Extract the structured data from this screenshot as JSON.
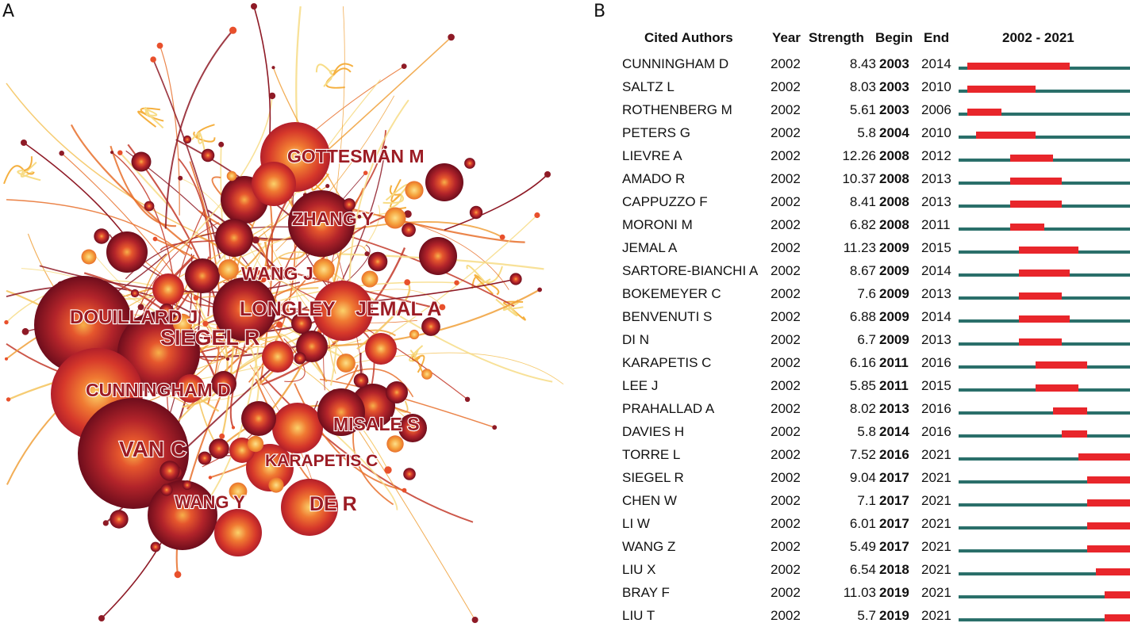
{
  "panel_a": {
    "letter": "A",
    "labels": {
      "gottesman": "GOTTESMAN M",
      "zhang": "ZHANG Y",
      "wangj": "WANG J",
      "longley": "LONGLEY",
      "jemal": "JEMAL A",
      "douillard": "DOUILLARD J",
      "siegel": "SIEGEL R",
      "cunningham": "CUNNINGHAM D",
      "misale": "MISALE S",
      "vanc": "VAN C",
      "karapetis": "KARAPETIS C",
      "wangy": "WANG Y",
      "der": "DE R"
    },
    "colors": {
      "label": "#9c1c24",
      "node_dark": "#7a0f1f",
      "node_mid": "#d1402a",
      "node_light": "#f59a3a",
      "link_pale": "#f7dc86"
    }
  },
  "panel_b": {
    "letter": "B",
    "headers": {
      "author": "Cited Authors",
      "year": "Year",
      "strength": "Strength",
      "begin": "Begin",
      "end": "End",
      "range": "2002 - 2021"
    },
    "range_start": 2002,
    "range_end": 2021,
    "colors": {
      "track": "#2a6f6a",
      "burst": "#e8262b"
    },
    "rows": [
      {
        "author": "CUNNINGHAM D",
        "year": "2002",
        "strength": "8.43",
        "begin": "2003",
        "end": "2014"
      },
      {
        "author": "SALTZ L",
        "year": "2002",
        "strength": "8.03",
        "begin": "2003",
        "end": "2010"
      },
      {
        "author": "ROTHENBERG M",
        "year": "2002",
        "strength": "5.61",
        "begin": "2003",
        "end": "2006"
      },
      {
        "author": "PETERS G",
        "year": "2002",
        "strength": "5.8",
        "begin": "2004",
        "end": "2010"
      },
      {
        "author": "LIEVRE A",
        "year": "2002",
        "strength": "12.26",
        "begin": "2008",
        "end": "2012"
      },
      {
        "author": "AMADO R",
        "year": "2002",
        "strength": "10.37",
        "begin": "2008",
        "end": "2013"
      },
      {
        "author": "CAPPUZZO F",
        "year": "2002",
        "strength": "8.41",
        "begin": "2008",
        "end": "2013"
      },
      {
        "author": "MORONI M",
        "year": "2002",
        "strength": "6.82",
        "begin": "2008",
        "end": "2011"
      },
      {
        "author": "JEMAL A",
        "year": "2002",
        "strength": "11.23",
        "begin": "2009",
        "end": "2015"
      },
      {
        "author": "SARTORE-BIANCHI A",
        "year": "2002",
        "strength": "8.67",
        "begin": "2009",
        "end": "2014"
      },
      {
        "author": "BOKEMEYER C",
        "year": "2002",
        "strength": "7.6",
        "begin": "2009",
        "end": "2013"
      },
      {
        "author": "BENVENUTI S",
        "year": "2002",
        "strength": "6.88",
        "begin": "2009",
        "end": "2014"
      },
      {
        "author": "DI N",
        "year": "2002",
        "strength": "6.7",
        "begin": "2009",
        "end": "2013"
      },
      {
        "author": "KARAPETIS C",
        "year": "2002",
        "strength": "6.16",
        "begin": "2011",
        "end": "2016"
      },
      {
        "author": "LEE J",
        "year": "2002",
        "strength": "5.85",
        "begin": "2011",
        "end": "2015"
      },
      {
        "author": "PRAHALLAD A",
        "year": "2002",
        "strength": "8.02",
        "begin": "2013",
        "end": "2016"
      },
      {
        "author": "DAVIES H",
        "year": "2002",
        "strength": "5.8",
        "begin": "2014",
        "end": "2016"
      },
      {
        "author": "TORRE L",
        "year": "2002",
        "strength": "7.52",
        "begin": "2016",
        "end": "2021"
      },
      {
        "author": "SIEGEL R",
        "year": "2002",
        "strength": "9.04",
        "begin": "2017",
        "end": "2021"
      },
      {
        "author": "CHEN W",
        "year": "2002",
        "strength": "7.1",
        "begin": "2017",
        "end": "2021"
      },
      {
        "author": "LI W",
        "year": "2002",
        "strength": "6.01",
        "begin": "2017",
        "end": "2021"
      },
      {
        "author": "WANG Z",
        "year": "2002",
        "strength": "5.49",
        "begin": "2017",
        "end": "2021"
      },
      {
        "author": "LIU X",
        "year": "2002",
        "strength": "6.54",
        "begin": "2018",
        "end": "2021"
      },
      {
        "author": "BRAY F",
        "year": "2002",
        "strength": "11.03",
        "begin": "2019",
        "end": "2021"
      },
      {
        "author": "LIU T",
        "year": "2002",
        "strength": "5.7",
        "begin": "2019",
        "end": "2021"
      }
    ]
  }
}
